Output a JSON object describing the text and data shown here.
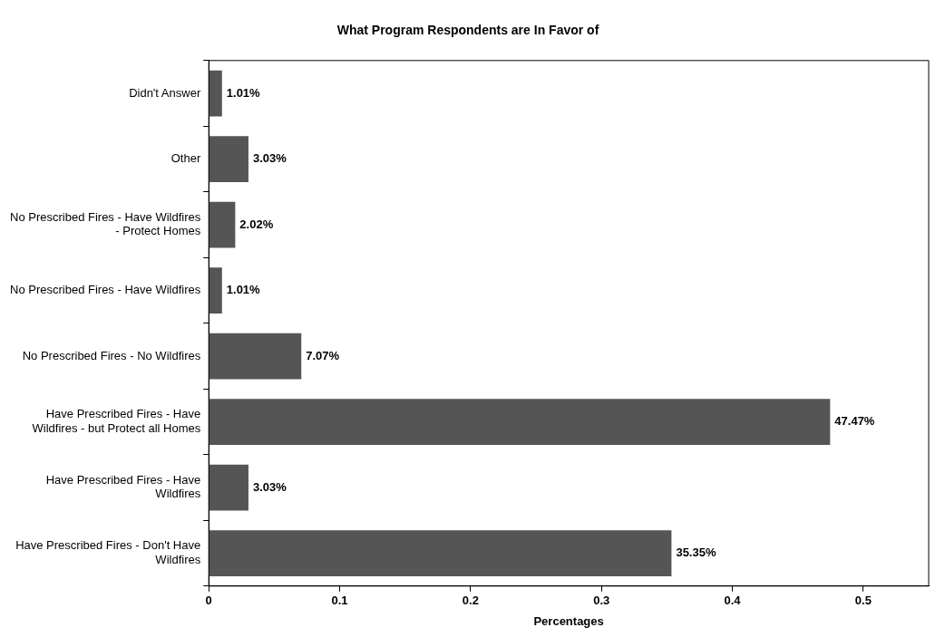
{
  "chart_data": {
    "type": "bar",
    "orientation": "horizontal",
    "title": "What Program Respondents are In Favor of",
    "xlabel": "Percentages",
    "categories": [
      "Didn't Answer",
      "Other",
      "No Prescribed Fires - Have Wildfires - Protect Homes",
      "No Prescribed Fires - Have Wildfires",
      "No Prescribed Fires - No Wildfires",
      "Have Prescribed Fires - Have Wildfires - but Protect all Homes",
      "Have Prescribed Fires - Have Wildfires",
      "Have Prescribed Fires - Don't Have Wildfires"
    ],
    "values": [
      0.0101,
      0.0303,
      0.0202,
      0.0101,
      0.0707,
      0.4747,
      0.0303,
      0.3535
    ],
    "value_labels": [
      "1.01%",
      "3.03%",
      "2.02%",
      "1.01%",
      "7.07%",
      "47.47%",
      "3.03%",
      "35.35%"
    ],
    "color": "#555555",
    "xlim": [
      0,
      0.55
    ],
    "xticks": [
      0,
      0.1,
      0.2,
      0.3,
      0.4,
      0.5
    ],
    "grid": false,
    "legend": false
  }
}
